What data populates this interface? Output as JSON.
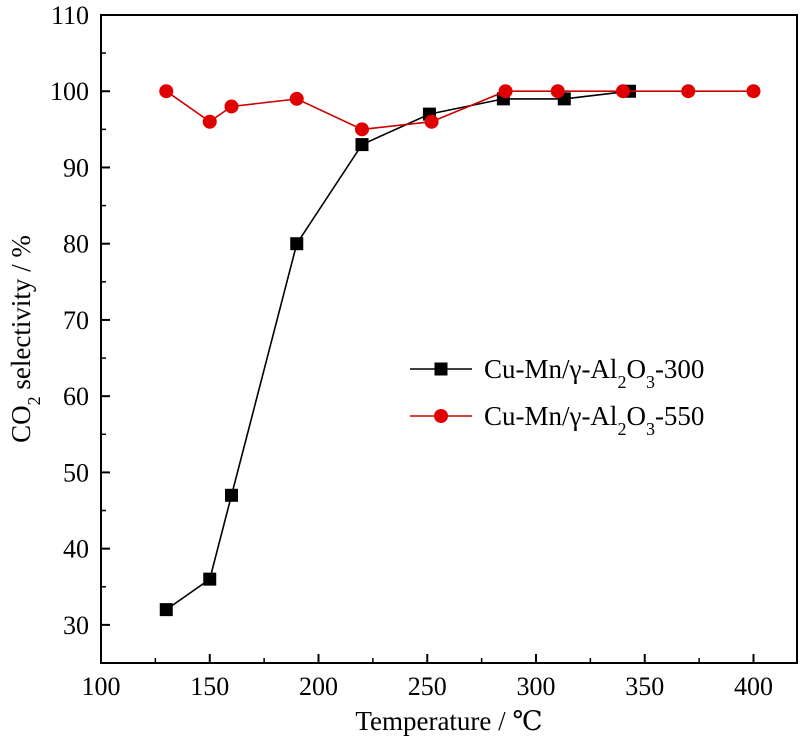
{
  "chart_data": {
    "type": "line",
    "xlabel": "Temperature / ℃",
    "ylabel": {
      "prefix": "CO",
      "sub": "2",
      "suffix": " selectivity / %"
    },
    "xlim": [
      100,
      420
    ],
    "ylim": [
      25,
      110
    ],
    "xticks": [
      100,
      150,
      200,
      250,
      300,
      350,
      400
    ],
    "yticks": [
      30,
      40,
      50,
      60,
      70,
      80,
      90,
      100,
      110
    ],
    "grid": false,
    "legend_position": "center-right",
    "series": [
      {
        "name": "Cu-Mn/γ-Al2O3-300",
        "label_parts": [
          {
            "t": "Cu-Mn/γ-Al",
            "sub": false
          },
          {
            "t": "2",
            "sub": true
          },
          {
            "t": "O",
            "sub": false
          },
          {
            "t": "3",
            "sub": true
          },
          {
            "t": "-300",
            "sub": false
          }
        ],
        "marker": "square",
        "line_color": "#000000",
        "marker_color": "#000000",
        "x": [
          130,
          150,
          160,
          190,
          220,
          251,
          285,
          313,
          343
        ],
        "y": [
          32,
          36,
          47,
          80,
          93,
          97,
          99,
          99,
          100
        ]
      },
      {
        "name": "Cu-Mn/γ-Al2O3-550",
        "label_parts": [
          {
            "t": "Cu-Mn/γ-Al",
            "sub": false
          },
          {
            "t": "2",
            "sub": true
          },
          {
            "t": "O",
            "sub": false
          },
          {
            "t": "3",
            "sub": true
          },
          {
            "t": "-550",
            "sub": false
          }
        ],
        "marker": "circle",
        "line_color": "#cc0000",
        "marker_color": "#e00000",
        "x": [
          130,
          150,
          160,
          190,
          220,
          252,
          286,
          310,
          340,
          370,
          400
        ],
        "y": [
          100,
          96,
          98,
          99,
          95,
          96,
          100,
          100,
          100,
          100,
          100
        ]
      }
    ]
  }
}
